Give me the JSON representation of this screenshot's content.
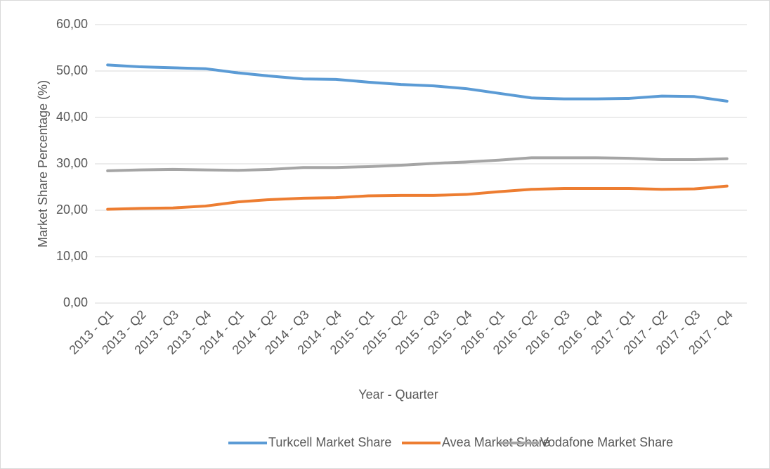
{
  "chart_data": {
    "type": "line",
    "x_label": "Year - Quarter",
    "y_label": "Market Share Percentage (%)",
    "categories": [
      "2013 - Q1",
      "2013 - Q2",
      "2013 - Q3",
      "2013 - Q4",
      "2014 - Q1",
      "2014 - Q2",
      "2014 - Q3",
      "2014 - Q4",
      "2015 - Q1",
      "2015 - Q2",
      "2015 - Q3",
      "2015 - Q4",
      "2016 - Q1",
      "2016 - Q2",
      "2016 - Q3",
      "2016 - Q4",
      "2017 - Q1",
      "2017 - Q2",
      "2017 - Q3",
      "2017 - Q4"
    ],
    "series": [
      {
        "name": "Turkcell Market Share",
        "color": "#5b9bd5",
        "values": [
          51.3,
          50.9,
          50.7,
          50.5,
          49.6,
          48.9,
          48.3,
          48.2,
          47.6,
          47.1,
          46.8,
          46.2,
          45.2,
          44.2,
          44.0,
          44.0,
          44.1,
          44.6,
          44.5,
          43.5
        ]
      },
      {
        "name": "Avea Market Share",
        "color": "#ed7d31",
        "values": [
          20.2,
          20.4,
          20.5,
          20.9,
          21.8,
          22.3,
          22.6,
          22.7,
          23.1,
          23.2,
          23.2,
          23.4,
          24.0,
          24.5,
          24.7,
          24.7,
          24.7,
          24.5,
          24.6,
          25.2
        ]
      },
      {
        "name": "Vodafone Market Share",
        "color": "#a5a5a5",
        "values": [
          28.5,
          28.7,
          28.8,
          28.7,
          28.6,
          28.8,
          29.2,
          29.2,
          29.4,
          29.7,
          30.1,
          30.4,
          30.8,
          31.3,
          31.3,
          31.3,
          31.2,
          30.9,
          30.9,
          31.1
        ]
      }
    ],
    "ylim": [
      0,
      60
    ],
    "yticks": [
      {
        "value": 0,
        "label": "0,00"
      },
      {
        "value": 10,
        "label": "10,00"
      },
      {
        "value": 20,
        "label": "20,00"
      },
      {
        "value": 30,
        "label": "30,00"
      },
      {
        "value": 40,
        "label": "40,00"
      },
      {
        "value": 50,
        "label": "50,00"
      },
      {
        "value": 60,
        "label": "60,00"
      }
    ],
    "grid": true,
    "legend": "bottom"
  }
}
